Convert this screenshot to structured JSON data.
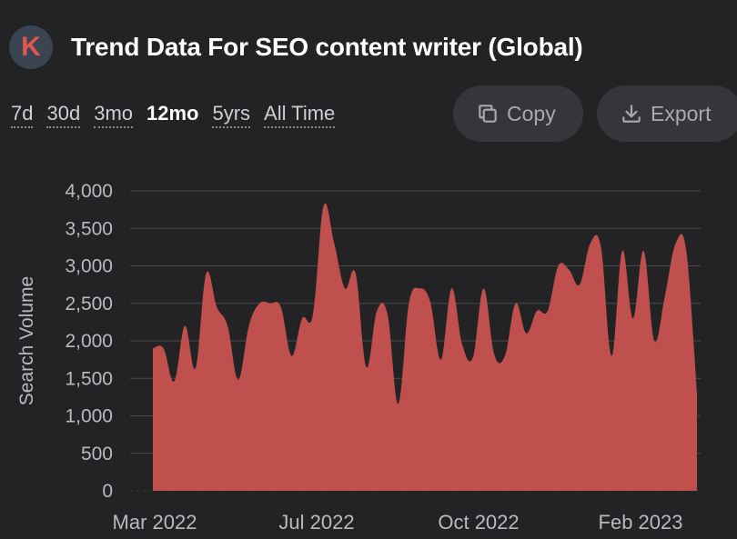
{
  "header": {
    "logo_letter": "K",
    "title": "Trend Data For SEO content writer (Global)"
  },
  "ranges": [
    "7d",
    "30d",
    "3mo",
    "12mo",
    "5yrs",
    "All Time"
  ],
  "active_range": "12mo",
  "buttons": {
    "copy": "Copy",
    "export": "Export"
  },
  "colors": {
    "background": "#232326",
    "area_fill": "#c0504d",
    "button_bg": "#35363a"
  },
  "chart_data": {
    "type": "area",
    "title": "",
    "ylabel": "Search Volume",
    "xlabel": "",
    "ylim": [
      0,
      4000
    ],
    "yticks": [
      0,
      500,
      1000,
      1500,
      2000,
      2500,
      3000,
      3500,
      4000
    ],
    "ytick_labels": [
      "0",
      "500",
      "1,000",
      "1,500",
      "2,000",
      "2,500",
      "3,000",
      "3,500",
      "4,000"
    ],
    "xtick_labels": [
      "Mar 2022",
      "Jul 2022",
      "Oct 2022",
      "Feb 2023"
    ],
    "grid": true,
    "values": [
      1900,
      1900,
      1460,
      2200,
      1640,
      2900,
      2450,
      2200,
      1480,
      2200,
      2500,
      2500,
      2450,
      1800,
      2300,
      2350,
      3800,
      3300,
      2700,
      2900,
      1650,
      2400,
      2350,
      1160,
      2500,
      2700,
      2520,
      1750,
      2700,
      1950,
      1780,
      2700,
      1820,
      1800,
      2500,
      2100,
      2400,
      2400,
      3000,
      2950,
      2750,
      3300,
      3250,
      1800,
      3200,
      2300,
      3200,
      2000,
      2600,
      3300,
      3200,
      1300
    ]
  }
}
